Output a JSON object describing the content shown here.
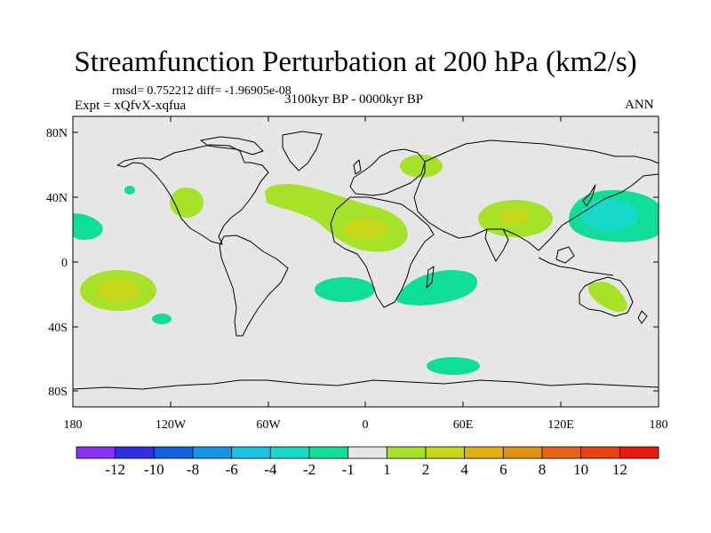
{
  "title": "Streamfunction Perturbation at 200 hPa (km2/s)",
  "stats_text": "rmsd= 0.752212 diff= -1.96905e-08",
  "experiment": "Expt = xQfvX-xqfua",
  "period": "3100kyr BP - 0000kyr BP",
  "season": "ANN",
  "x_ticks": [
    "180",
    "120W",
    "60W",
    "0",
    "60E",
    "120E",
    "180"
  ],
  "y_ticks": [
    "80N",
    "40N",
    "0",
    "40S",
    "80S"
  ],
  "colorbar": {
    "colors": [
      "#8b2ff0",
      "#2f2fdf",
      "#1060e0",
      "#1595e8",
      "#19c3e6",
      "#18d9c9",
      "#10dd9a",
      "#e6e6e6",
      "#a6e22a",
      "#c8d61c",
      "#e1b114",
      "#e39017",
      "#e56415",
      "#e84312",
      "#e61a0c"
    ],
    "labels": [
      "-12",
      "-10",
      "-8",
      "-6",
      "-4",
      "-2",
      "-1",
      "1",
      "2",
      "4",
      "6",
      "8",
      "10",
      "12"
    ]
  },
  "map_background": "#e6e6e6"
}
